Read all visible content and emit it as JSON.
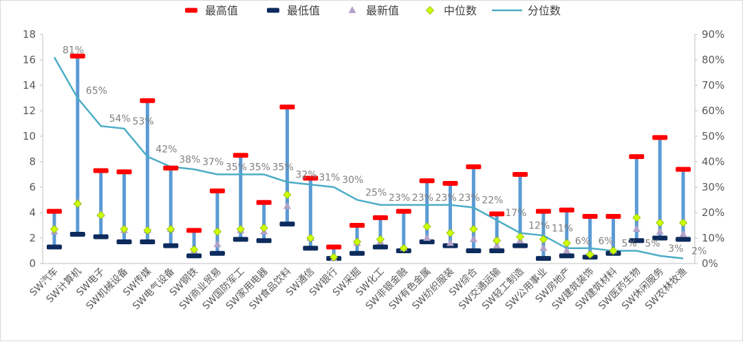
{
  "chart_data": {
    "type": "line",
    "legend": {
      "position": "top",
      "items": [
        {
          "key": "max",
          "label": "最高值"
        },
        {
          "key": "min",
          "label": "最低值"
        },
        {
          "key": "latest",
          "label": "最新值"
        },
        {
          "key": "median",
          "label": "中位数"
        },
        {
          "key": "pct",
          "label": "分位数"
        }
      ]
    },
    "categories": [
      "SW汽车",
      "SW计算机",
      "SW电子",
      "SW机械设备",
      "SW传媒",
      "SW电气设备",
      "SW钢铁",
      "SW商业贸易",
      "SW国防军工",
      "SW家用电器",
      "SW食品饮料",
      "SW通信",
      "SW银行",
      "SW采掘",
      "SW化工",
      "SW非银金融",
      "SW有色金属",
      "SW纺织服装",
      "SW综合",
      "SW交通运输",
      "SW轻工制造",
      "SW公用事业",
      "SW房地产",
      "SW建筑装饰",
      "SW建筑材料",
      "SW医药生物",
      "SW休闲服务",
      "SW农林牧渔"
    ],
    "series": [
      {
        "name": "最高值",
        "values": [
          4.1,
          16.3,
          7.3,
          7.2,
          12.8,
          7.5,
          2.6,
          5.7,
          8.5,
          4.8,
          12.3,
          6.7,
          1.3,
          3.0,
          3.6,
          4.1,
          6.5,
          6.3,
          7.6,
          3.9,
          7.0,
          4.1,
          4.2,
          3.7,
          3.7,
          8.4,
          9.9,
          7.4
        ]
      },
      {
        "name": "最低值",
        "values": [
          1.3,
          2.3,
          2.1,
          1.7,
          1.7,
          1.4,
          0.6,
          0.8,
          1.9,
          1.8,
          3.1,
          1.2,
          0.4,
          0.8,
          1.3,
          1.0,
          1.7,
          1.4,
          1.0,
          1.0,
          1.4,
          0.4,
          0.6,
          0.5,
          0.8,
          1.8,
          2.0,
          1.9
        ]
      },
      {
        "name": "最新值",
        "values": [
          2.5,
          4.8,
          3.9,
          2.6,
          2.6,
          2.7,
          1.0,
          1.5,
          2.6,
          2.5,
          4.5,
          2.0,
          0.4,
          1.6,
          1.7,
          1.2,
          2.0,
          1.6,
          1.9,
          1.4,
          1.8,
          1.2,
          1.0,
          0.8,
          1.0,
          2.7,
          2.5,
          2.3
        ]
      },
      {
        "name": "中位数",
        "values": [
          2.7,
          4.7,
          3.8,
          2.7,
          2.6,
          2.7,
          1.1,
          2.5,
          2.7,
          2.8,
          5.4,
          2.0,
          0.5,
          1.7,
          1.9,
          1.2,
          2.9,
          2.4,
          2.7,
          1.8,
          2.1,
          1.9,
          1.6,
          0.7,
          1.0,
          3.6,
          3.2,
          3.2
        ]
      },
      {
        "name": "分位数",
        "axis": "right",
        "values": [
          81,
          65,
          54,
          53,
          42,
          38,
          37,
          35,
          35,
          35,
          32,
          31,
          30,
          25,
          23,
          23,
          23,
          23,
          22,
          17,
          12,
          11,
          6,
          6,
          5,
          5,
          3,
          2
        ]
      }
    ],
    "pct_labels": [
      "81%",
      "65%",
      "54%",
      "53%",
      "42%",
      "38%",
      "37%",
      "35%",
      "35%",
      "35%",
      "32%",
      "31%",
      "30%",
      "25%",
      "23%",
      "23%",
      "23%",
      "23%",
      "22%",
      "17%",
      "12%",
      "11%",
      "6%",
      "6%",
      "5%",
      "5%",
      "3%",
      "2%"
    ],
    "left_axis": {
      "ylim": [
        0,
        18
      ],
      "ticks": [
        "0",
        "2",
        "4",
        "6",
        "8",
        "10",
        "12",
        "14",
        "16",
        "18"
      ]
    },
    "right_axis": {
      "ylim": [
        0,
        90
      ],
      "ticks": [
        "0%",
        "10%",
        "20%",
        "30%",
        "40%",
        "50%",
        "60%",
        "70%",
        "80%",
        "90%"
      ]
    },
    "grid": false,
    "colors": {
      "max": "#ff0000",
      "min": "#0d2b5c",
      "latest": "#b3a2c7",
      "median": "#ccff00",
      "median_edge": "#92b400",
      "range_bar": "#5b9bd5",
      "pct_line": "#4bacc6",
      "axis": "#bfbfbf",
      "text": "#595959"
    }
  }
}
